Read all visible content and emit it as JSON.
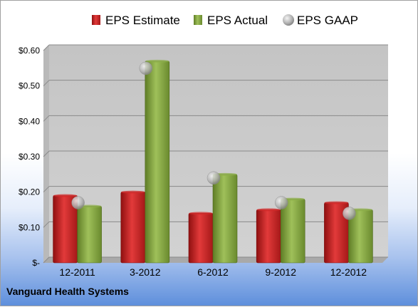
{
  "company": "Vanguard Health Systems",
  "colors": {
    "estimate": "#d42a2a",
    "actual": "#8fb04a",
    "gaap": "#b8b8b8",
    "plot_bg": "#c9c9c9"
  },
  "chart_data": {
    "type": "bar",
    "categories": [
      "12-2011",
      "3-2012",
      "6-2012",
      "9-2012",
      "12-2012"
    ],
    "series": [
      {
        "name": "EPS Estimate",
        "type": "bar",
        "values": [
          0.19,
          0.2,
          0.14,
          0.15,
          0.17
        ]
      },
      {
        "name": "EPS Actual",
        "type": "bar",
        "values": [
          0.16,
          0.57,
          0.25,
          0.18,
          0.15
        ]
      },
      {
        "name": "EPS GAAP",
        "type": "scatter",
        "values": [
          0.17,
          0.55,
          0.24,
          0.17,
          0.14
        ]
      }
    ],
    "ylim": [
      0,
      0.6
    ],
    "yticks": [
      0,
      0.1,
      0.2,
      0.3,
      0.4,
      0.5,
      0.6
    ],
    "ytick_labels": [
      "$-",
      "$0.10",
      "$0.20",
      "$0.30",
      "$0.40",
      "$0.50",
      "$0.60"
    ],
    "grid": true,
    "legend": "top"
  }
}
